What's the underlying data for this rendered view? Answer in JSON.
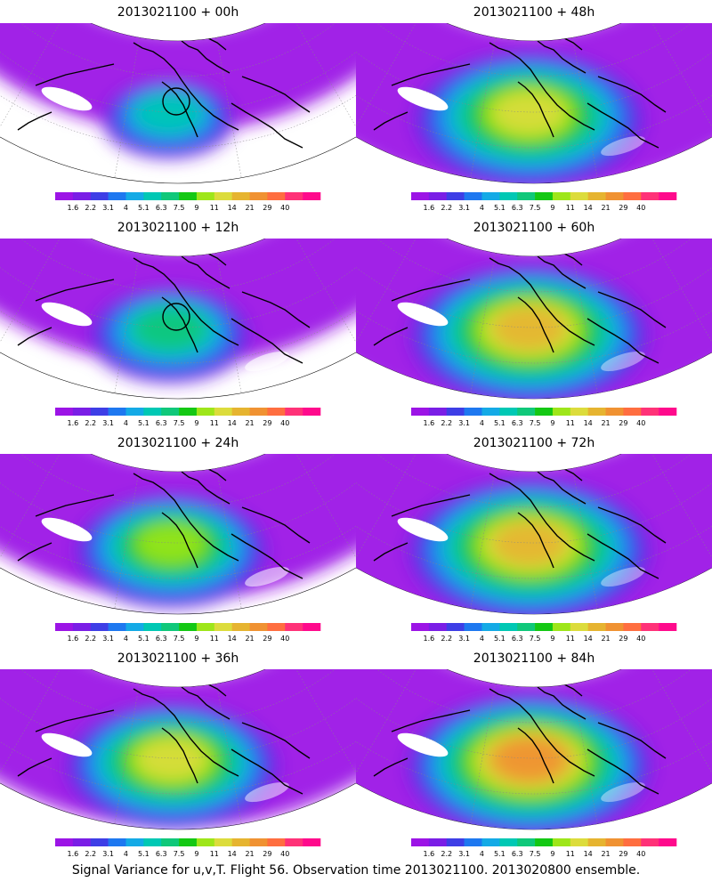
{
  "palette": [
    "#9c14e6",
    "#7a1ee6",
    "#3e3ee6",
    "#1e78f0",
    "#14aae6",
    "#00c8b4",
    "#10c87a",
    "#14c814",
    "#9ee61a",
    "#dcdc3c",
    "#e6b430",
    "#f09232",
    "#ff6e40",
    "#ff3278",
    "#ff0a8c"
  ],
  "colorbar_labels": [
    "1.6",
    "2.2",
    "3.1",
    "4",
    "5.1",
    "6.3",
    "7.5",
    "9",
    "11",
    "14",
    "21",
    "29",
    "40"
  ],
  "panels": [
    {
      "title": "2013021100 + 00h",
      "circle": true,
      "intensity": 0.35,
      "spread": 0.45
    },
    {
      "title": "2013021100 + 48h",
      "circle": false,
      "intensity": 0.7,
      "spread": 0.95
    },
    {
      "title": "2013021100 + 12h",
      "circle": true,
      "intensity": 0.45,
      "spread": 0.6
    },
    {
      "title": "2013021100 + 60h",
      "circle": false,
      "intensity": 0.75,
      "spread": 0.98
    },
    {
      "title": "2013021100 + 24h",
      "circle": false,
      "intensity": 0.55,
      "spread": 0.75
    },
    {
      "title": "2013021100 + 72h",
      "circle": false,
      "intensity": 0.78,
      "spread": 1.0
    },
    {
      "title": "2013021100 + 36h",
      "circle": false,
      "intensity": 0.65,
      "spread": 0.85
    },
    {
      "title": "2013021100 + 84h",
      "circle": false,
      "intensity": 0.8,
      "spread": 1.0
    }
  ],
  "footer": "Signal Variance for u,v,T. Flight 56. Observation time 2013021100. 2013020800 ensemble."
}
